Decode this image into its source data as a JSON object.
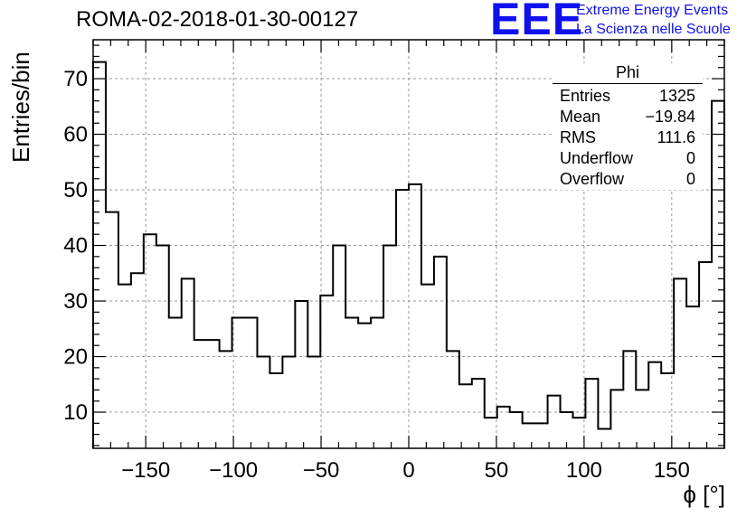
{
  "header": {
    "title": "ROMA-02-2018-01-30-00127",
    "logo_text": "EEE",
    "logo_line1": "Extreme Energy Events",
    "logo_line2": "La Scienza nelle Scuole"
  },
  "stats_box": {
    "name": "Phi",
    "rows": [
      {
        "label": "Entries",
        "value": "1325"
      },
      {
        "label": "Mean",
        "value": "−19.84"
      },
      {
        "label": "RMS",
        "value": "111.6"
      },
      {
        "label": "Underflow",
        "value": "0"
      },
      {
        "label": "Overflow",
        "value": "0"
      }
    ]
  },
  "chart_data": {
    "type": "bar",
    "histogram": true,
    "xlabel": "ϕ [°]",
    "ylabel": "Entries/bin",
    "xlim": [
      -180,
      180
    ],
    "ylim": [
      3.5,
      77
    ],
    "bin_width": 7.2,
    "x_ticks": [
      -150,
      -100,
      -50,
      0,
      50,
      100,
      150
    ],
    "y_ticks": [
      10,
      20,
      30,
      40,
      50,
      60,
      70
    ],
    "grid": true,
    "line_color": "#000000",
    "values": [
      73,
      46,
      33,
      35,
      42,
      40,
      27,
      34,
      23,
      23,
      21,
      27,
      27,
      20,
      17,
      20,
      30,
      20,
      31,
      40,
      27,
      26,
      27,
      40,
      50,
      51,
      33,
      38,
      21,
      15,
      16,
      9,
      11,
      10,
      8,
      8,
      13,
      10,
      9,
      16,
      7,
      14,
      21,
      14,
      19,
      17,
      34,
      29,
      37,
      66
    ]
  }
}
